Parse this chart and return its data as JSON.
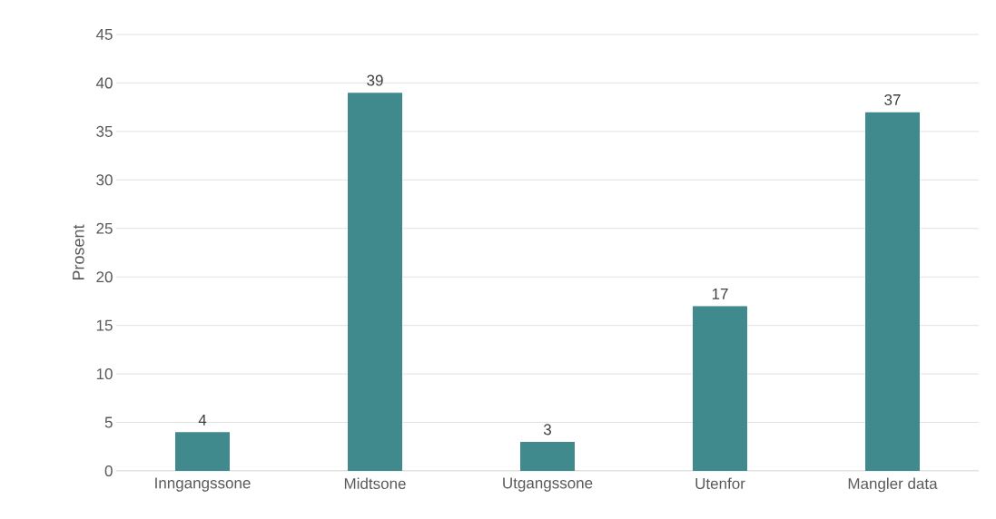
{
  "chart_data": {
    "type": "bar",
    "ylabel": "Prosent",
    "categories": [
      "Inngangssone",
      "Midtsone",
      "Utgangssone",
      "Utenfor",
      "Mangler data"
    ],
    "values": [
      4,
      39,
      3,
      17,
      37
    ],
    "color": "#408a8d",
    "ylim": [
      0,
      45
    ],
    "yticks": [
      0,
      5,
      10,
      15,
      20,
      25,
      30,
      35,
      40,
      45
    ],
    "grid": "y",
    "data_labels": true
  }
}
